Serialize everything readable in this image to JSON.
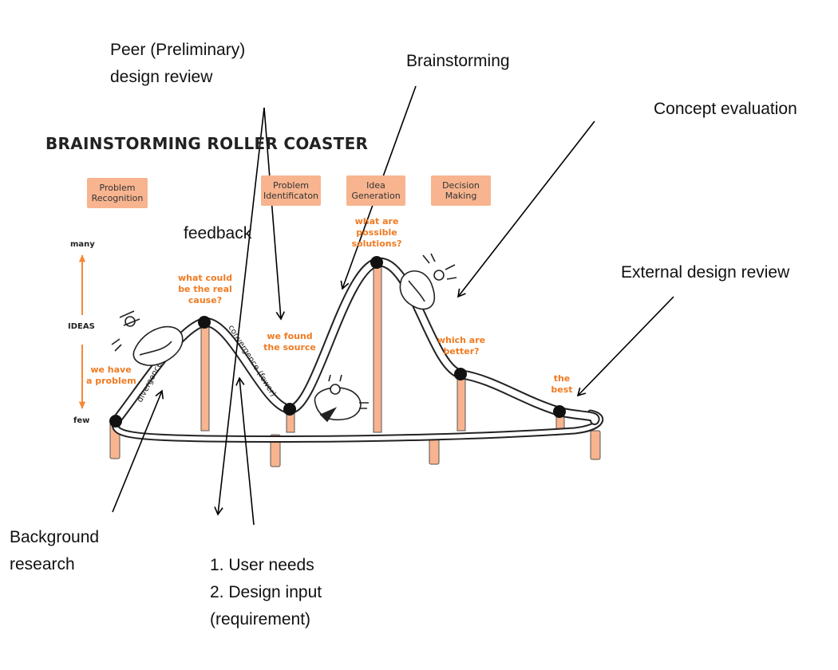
{
  "title": "BRAINSTORMING ROLLER COASTER",
  "stages": [
    {
      "id": "problem-recognition",
      "lines": [
        "Problem",
        "Recognition"
      ]
    },
    {
      "id": "problem-identification",
      "lines": [
        "Problem",
        "Identificaton"
      ]
    },
    {
      "id": "idea-generation",
      "lines": [
        "Idea",
        "Generation"
      ]
    },
    {
      "id": "decision-making",
      "lines": [
        "Decision",
        "Making"
      ]
    }
  ],
  "y_axis": {
    "top_label": "many",
    "middle_label": "IDEAS",
    "bottom_label": "few"
  },
  "orange_labels": {
    "we_have": [
      "we have",
      "a problem"
    ],
    "what_could": [
      "what could",
      "be the real",
      "cause?"
    ],
    "we_found": [
      "we found",
      "the source"
    ],
    "what_are": [
      "what are",
      "possible",
      "solutions?"
    ],
    "which_are": [
      "which are",
      "better?"
    ],
    "the_best": [
      "the",
      "best"
    ]
  },
  "track_labels": {
    "divergence": "divergence (more)",
    "convergence": "convergence (fewer)"
  },
  "annotations": {
    "peer_review": [
      "Peer (Preliminary)",
      "design review"
    ],
    "brainstorming": "Brainstorming",
    "concept_evaluation": "Concept evaluation",
    "feedback": "feedback",
    "external_review": "External design review",
    "background_research": [
      "Background",
      "research"
    ],
    "user_needs": [
      "1. User needs",
      "2. Design input",
      "(requirement)"
    ]
  },
  "colors": {
    "stage_box": "#f7b48f",
    "orange_text": "#f07b22",
    "axis_arrow": "#f5883a",
    "pillar": "#f7b48f",
    "track": "#222222"
  }
}
